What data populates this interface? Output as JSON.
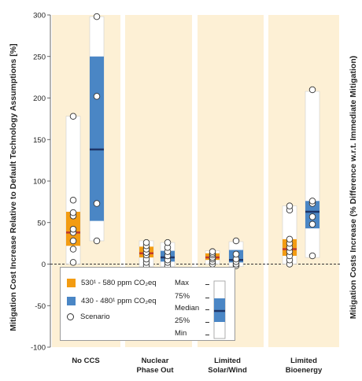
{
  "colors": {
    "panel_bg": "#fdf0d5",
    "orange": "#f39c12",
    "blue": "#4a86c5",
    "median": "#1e3568",
    "median_orange": "#c0392b",
    "range_box": "#ffffff"
  },
  "chart_data": {
    "type": "box",
    "ylabel": "Mitigation Cost Increase Relative to Default Technology Assumptions [%]",
    "ylabel_right": "Mitigation Costs Increase (% Difference w.r.t. Immediate Mitigation)",
    "ylim": [
      -100,
      300
    ],
    "yticks": [
      "300",
      "250",
      "200",
      "150",
      "100",
      "50",
      "0",
      "-50",
      "-100"
    ],
    "categories": [
      "No CCS",
      "Nuclear Phase Out",
      "Limited Solar/Wind",
      "Limited Bioenergy"
    ],
    "category_lines": [
      [
        "No CCS"
      ],
      [
        "Nuclear",
        "Phase Out"
      ],
      [
        "Limited",
        "Solar/Wind"
      ],
      [
        "Limited",
        "Bioenergy"
      ]
    ],
    "series": [
      {
        "name": "530¹ - 580 ppm CO₂eq",
        "color": "orange",
        "boxes": [
          {
            "min": 0,
            "q1": 22,
            "median": 38,
            "q3": 63,
            "max": 178,
            "scenarios": [
              2,
              18,
              28,
              38,
              42,
              58,
              62,
              77,
              178
            ]
          },
          {
            "min": -3,
            "q1": 8,
            "median": 13,
            "q3": 21,
            "max": 28,
            "scenarios": [
              -2,
              2,
              6,
              11,
              14,
              18,
              22,
              26
            ]
          },
          {
            "min": 0,
            "q1": 5,
            "median": 8,
            "q3": 13,
            "max": 16,
            "scenarios": [
              0,
              3,
              6,
              8,
              11,
              13,
              15
            ]
          },
          {
            "min": 0,
            "q1": 10,
            "median": 18,
            "q3": 30,
            "max": 70,
            "scenarios": [
              0,
              5,
              10,
              15,
              20,
              25,
              30,
              65,
              70
            ]
          }
        ]
      },
      {
        "name": "430 - 480¹ ppm CO₂eq",
        "color": "blue",
        "boxes": [
          {
            "min": 28,
            "q1": 52,
            "median": 138,
            "q3": 250,
            "max": 298,
            "scenarios": [
              28,
              73,
              202,
              298
            ]
          },
          {
            "min": -3,
            "q1": 3,
            "median": 8,
            "q3": 16,
            "max": 26,
            "scenarios": [
              -2,
              2,
              5,
              10,
              15,
              20,
              26
            ]
          },
          {
            "min": -3,
            "q1": 2,
            "median": 5,
            "q3": 17,
            "max": 27,
            "scenarios": [
              -2,
              0,
              3,
              6,
              12,
              28
            ]
          },
          {
            "min": 8,
            "q1": 43,
            "median": 63,
            "q3": 76,
            "max": 208,
            "scenarios": [
              10,
              48,
              57,
              73,
              76,
              210
            ]
          }
        ]
      }
    ],
    "legend": {
      "orange_label": "530¹ - 580  ppm CO₂eq",
      "blue_label": "430 - 480¹ ppm CO₂eq",
      "scenario_label": "Scenario",
      "key_labels": [
        "Max",
        "75%",
        "Median",
        "25%",
        "Min"
      ]
    }
  }
}
